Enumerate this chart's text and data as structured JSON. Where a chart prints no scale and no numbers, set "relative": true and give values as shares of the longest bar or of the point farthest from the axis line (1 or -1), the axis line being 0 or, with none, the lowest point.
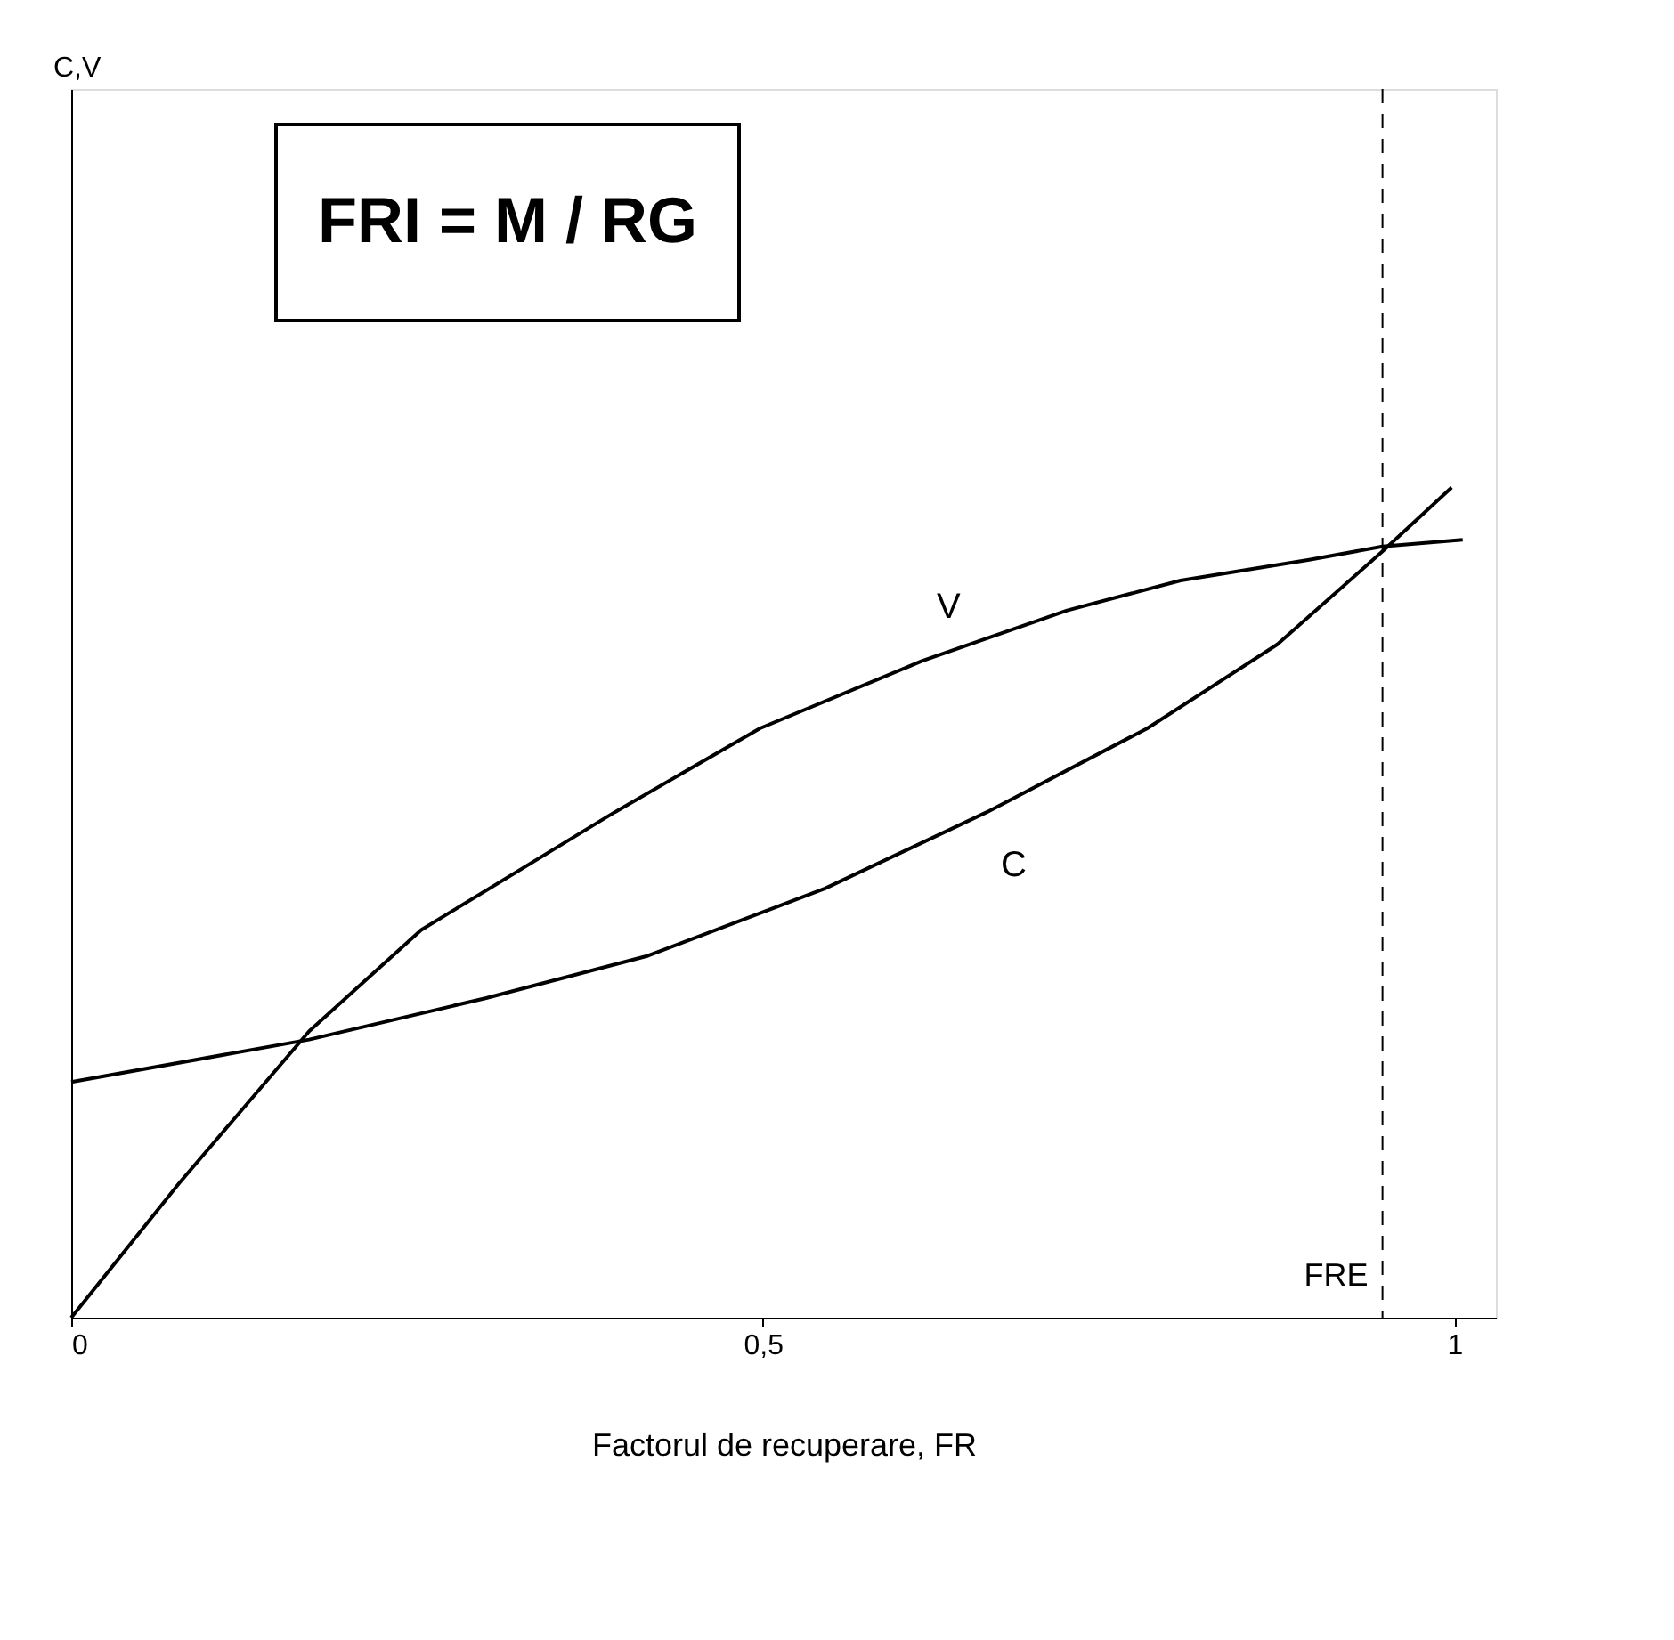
{
  "chart_data": {
    "type": "line",
    "relative": true,
    "xlabel": "Factorul de recuperare, FR",
    "legend": false,
    "xlim": [
      0,
      1.03
    ],
    "xticks": [
      0,
      {
        "value": 0.5,
        "label": "0,5"
      },
      1
    ],
    "grid": false,
    "marker": "none",
    "line_style": "solid",
    "series": [
      {
        "name": "V",
        "color": "#000000",
        "x": [
          0,
          0.078,
          0.172,
          0.253,
          0.393,
          0.498,
          0.615,
          0.72,
          0.802,
          0.895,
          0.948,
          1.006
        ],
        "values": [
          0,
          0.162,
          0.345,
          0.467,
          0.609,
          0.71,
          0.791,
          0.852,
          0.888,
          0.913,
          0.929,
          0.937
        ]
      },
      {
        "name": "C",
        "color": "#000000",
        "x": [
          0,
          0.172,
          0.3,
          0.417,
          0.545,
          0.662,
          0.778,
          0.872,
          0.948,
          0.998
        ],
        "values": [
          0.284,
          0.335,
          0.385,
          0.436,
          0.517,
          0.609,
          0.71,
          0.811,
          0.923,
          1.0
        ]
      }
    ],
    "ref_lines": [
      {
        "axis": "x",
        "value": 0.948,
        "label": "FRE",
        "line_style": "dashed",
        "color": "#000000"
      }
    ],
    "annotations": [
      "C,V",
      "FRI = M / RG"
    ]
  }
}
